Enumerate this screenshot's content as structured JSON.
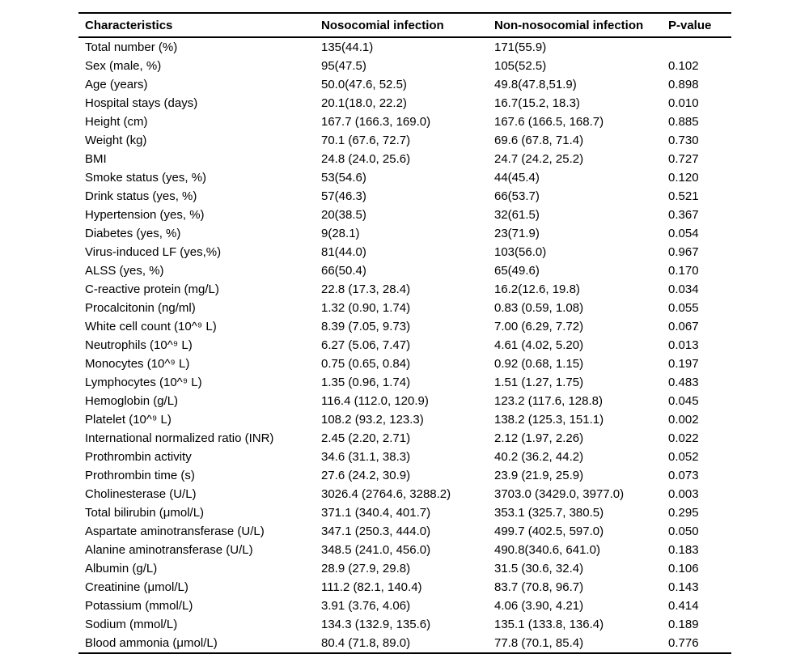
{
  "page": {
    "background_color": "#ffffff",
    "text_color": "#000000",
    "rule_color": "#000000"
  },
  "table": {
    "columns": [
      "Characteristics",
      "Nosocomial infection",
      "Non-nosocomial infection",
      "P-value"
    ],
    "rows": [
      [
        "Total number (%)",
        "135(44.1)",
        "171(55.9)",
        ""
      ],
      [
        "Sex (male, %)",
        "95(47.5)",
        "105(52.5)",
        "0.102"
      ],
      [
        "Age (years)",
        "50.0(47.6, 52.5)",
        "49.8(47.8,51.9)",
        "0.898"
      ],
      [
        "Hospital stays (days)",
        "20.1(18.0, 22.2)",
        "16.7(15.2, 18.3)",
        "0.010"
      ],
      [
        "Height (cm)",
        "167.7 (166.3, 169.0)",
        "167.6 (166.5, 168.7)",
        "0.885"
      ],
      [
        "Weight (kg)",
        "70.1 (67.6, 72.7)",
        "69.6 (67.8, 71.4)",
        "0.730"
      ],
      [
        "BMI",
        "24.8 (24.0, 25.6)",
        "24.7 (24.2, 25.2)",
        "0.727"
      ],
      [
        "Smoke status (yes, %)",
        "53(54.6)",
        "44(45.4)",
        "0.120"
      ],
      [
        "Drink status (yes, %)",
        "57(46.3)",
        "66(53.7)",
        "0.521"
      ],
      [
        "Hypertension (yes, %)",
        "20(38.5)",
        "32(61.5)",
        "0.367"
      ],
      [
        "Diabetes (yes, %)",
        "9(28.1)",
        "23(71.9)",
        "0.054"
      ],
      [
        "Virus-induced LF (yes,%)",
        "81(44.0)",
        "103(56.0)",
        "0.967"
      ],
      [
        "ALSS (yes, %)",
        "66(50.4)",
        "65(49.6)",
        "0.170"
      ],
      [
        "C-reactive protein (mg/L)",
        "22.8 (17.3, 28.4)",
        "16.2(12.6, 19.8)",
        "0.034"
      ],
      [
        "Procalcitonin (ng/ml)",
        "1.32 (0.90, 1.74)",
        "0.83 (0.59, 1.08)",
        "0.055"
      ],
      [
        "White cell count (10^⁹ L)",
        "8.39 (7.05, 9.73)",
        "7.00 (6.29, 7.72)",
        "0.067"
      ],
      [
        "Neutrophils (10^⁹ L)",
        "6.27 (5.06, 7.47)",
        "4.61 (4.02, 5.20)",
        "0.013"
      ],
      [
        "Monocytes (10^⁹ L)",
        "0.75 (0.65, 0.84)",
        "0.92 (0.68, 1.15)",
        "0.197"
      ],
      [
        "Lymphocytes (10^⁹ L)",
        "1.35 (0.96, 1.74)",
        "1.51 (1.27, 1.75)",
        "0.483"
      ],
      [
        "Hemoglobin (g/L)",
        "116.4 (112.0, 120.9)",
        "123.2 (117.6, 128.8)",
        "0.045"
      ],
      [
        "Platelet (10^⁹ L)",
        "108.2 (93.2, 123.3)",
        "138.2 (125.3, 151.1)",
        "0.002"
      ],
      [
        "International normalized ratio (INR)",
        "2.45 (2.20, 2.71)",
        "2.12 (1.97, 2.26)",
        "0.022"
      ],
      [
        "Prothrombin activity",
        "34.6 (31.1, 38.3)",
        "40.2 (36.2, 44.2)",
        "0.052"
      ],
      [
        "Prothrombin time (s)",
        "27.6 (24.2, 30.9)",
        "23.9 (21.9, 25.9)",
        "0.073"
      ],
      [
        "Cholinesterase (U/L)",
        "3026.4 (2764.6, 3288.2)",
        "3703.0 (3429.0, 3977.0)",
        "0.003"
      ],
      [
        "Total bilirubin (μmol/L)",
        "371.1 (340.4, 401.7)",
        "353.1 (325.7, 380.5)",
        "0.295"
      ],
      [
        "Aspartate aminotransferase (U/L)",
        "347.1 (250.3, 444.0)",
        "499.7 (402.5, 597.0)",
        "0.050"
      ],
      [
        "Alanine aminotransferase (U/L)",
        "348.5 (241.0, 456.0)",
        "490.8(340.6, 641.0)",
        "0.183"
      ],
      [
        "Albumin (g/L)",
        "28.9 (27.9, 29.8)",
        "31.5 (30.6, 32.4)",
        "0.106"
      ],
      [
        "Creatinine (μmol/L)",
        "111.2 (82.1, 140.4)",
        "83.7 (70.8, 96.7)",
        "0.143"
      ],
      [
        "Potassium (mmol/L)",
        "3.91 (3.76, 4.06)",
        "4.06 (3.90, 4.21)",
        "0.414"
      ],
      [
        "Sodium (mmol/L)",
        "134.3 (132.9, 135.6)",
        "135.1 (133.8, 136.4)",
        "0.189"
      ],
      [
        "Blood ammonia (μmol/L)",
        "80.4 (71.8, 89.0)",
        "77.8 (70.1, 85.4)",
        "0.776"
      ]
    ]
  }
}
